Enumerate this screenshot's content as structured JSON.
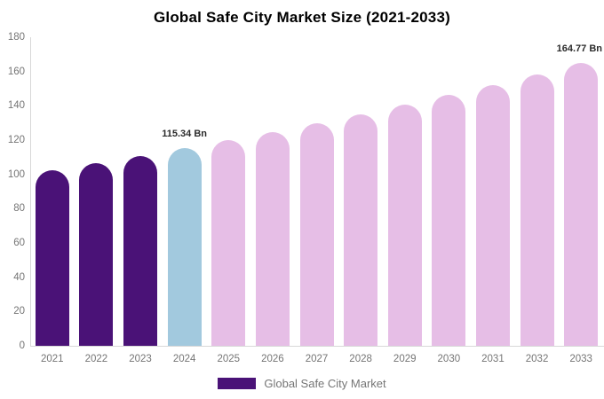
{
  "title": "Global Safe City Market Size (2021-2033)",
  "legend": {
    "label": "Global Safe City Market",
    "swatch_color": "#4a1277"
  },
  "palette": {
    "historical": "#4a1277",
    "current": "#a2c9de",
    "forecast": "#e6bee6"
  },
  "axis_colors": {
    "axis_line": "#d8d8d8",
    "tick_text": "#757575",
    "annotation_text": "#2b2b2b"
  },
  "chart_data": {
    "type": "bar",
    "title": "Global Safe City Market Size (2021-2033)",
    "xlabel": "",
    "ylabel": "",
    "categories": [
      "2021",
      "2022",
      "2023",
      "2024",
      "2025",
      "2026",
      "2027",
      "2028",
      "2029",
      "2030",
      "2031",
      "2032",
      "2033"
    ],
    "values": [
      102.4,
      106.6,
      110.9,
      115.34,
      120.0,
      124.9,
      129.9,
      135.2,
      140.6,
      146.3,
      152.2,
      158.4,
      164.77
    ],
    "bar_roles": [
      "historical",
      "historical",
      "historical",
      "current",
      "forecast",
      "forecast",
      "forecast",
      "forecast",
      "forecast",
      "forecast",
      "forecast",
      "forecast",
      "forecast"
    ],
    "annotations": [
      {
        "index": 3,
        "text": "115.34 Bn"
      },
      {
        "index": 12,
        "text": "164.77 Bn"
      }
    ],
    "ylim": [
      0,
      180
    ],
    "yticks": [
      0,
      20,
      40,
      60,
      80,
      100,
      120,
      140,
      160,
      180
    ],
    "grid": false,
    "legend_position": "bottom",
    "legend_entries": [
      "Global Safe City Market"
    ]
  }
}
